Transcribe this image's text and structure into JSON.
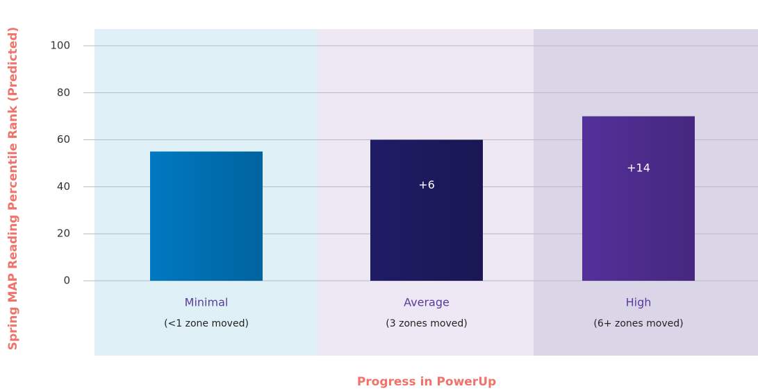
{
  "chart_data": {
    "type": "bar",
    "y_label": "Spring MAP Reading Percentile Rank (Predicted)",
    "x_label": "Progress in PowerUp",
    "categories": [
      "Minimal",
      "Average",
      "High"
    ],
    "category_notes": [
      "(<1 zone moved)",
      "(3 zones moved)",
      "(6+ zones moved)"
    ],
    "values": [
      55,
      60,
      70
    ],
    "annotations": [
      null,
      "+6",
      "+14"
    ],
    "colors": [
      "#0079c1",
      "#1f1c66",
      "#54309a"
    ],
    "band_colors": [
      "#dff1f7",
      "#ede8f3",
      "#dbd5e8"
    ],
    "ylim": [
      0,
      100
    ],
    "yticks": [
      0,
      20,
      40,
      60,
      80,
      100
    ],
    "grid": true
  }
}
